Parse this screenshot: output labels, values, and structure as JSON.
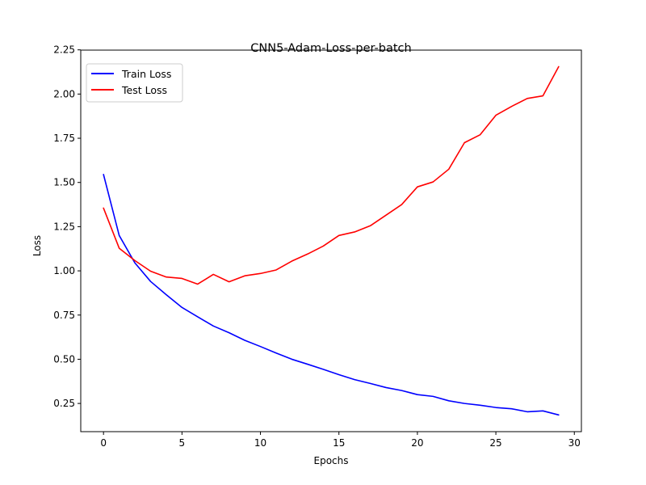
{
  "chart_data": {
    "type": "line",
    "title": "CNN5-Adam-Loss-per-batch",
    "xlabel": "Epochs",
    "ylabel": "Loss",
    "xlim": [
      -1.45,
      30.45
    ],
    "ylim": [
      0.0905,
      2.2485
    ],
    "xticks": [
      0,
      5,
      10,
      15,
      20,
      25,
      30
    ],
    "xtick_labels": [
      "0",
      "5",
      "10",
      "15",
      "20",
      "25",
      "30"
    ],
    "yticks": [
      0.25,
      0.5,
      0.75,
      1.0,
      1.25,
      1.5,
      1.75,
      2.0,
      2.25
    ],
    "ytick_labels": [
      "0.25",
      "0.50",
      "0.75",
      "1.00",
      "1.25",
      "1.50",
      "1.75",
      "2.00",
      "2.25"
    ],
    "grid": false,
    "legend_position": "top-left",
    "x": [
      0,
      1,
      2,
      3,
      4,
      5,
      6,
      7,
      8,
      9,
      10,
      11,
      12,
      13,
      14,
      15,
      16,
      17,
      18,
      19,
      20,
      21,
      22,
      23,
      24,
      25,
      26,
      27,
      28,
      29
    ],
    "series": [
      {
        "name": "Train Loss",
        "color": "#0000ff",
        "values": [
          1.545,
          1.2,
          1.045,
          0.94,
          0.865,
          0.793,
          0.74,
          0.688,
          0.65,
          0.607,
          0.572,
          0.535,
          0.5,
          0.472,
          0.443,
          0.413,
          0.385,
          0.363,
          0.34,
          0.323,
          0.3,
          0.29,
          0.265,
          0.25,
          0.24,
          0.227,
          0.22,
          0.203,
          0.208,
          0.185
        ]
      },
      {
        "name": "Test Loss",
        "color": "#ff0000",
        "values": [
          1.355,
          1.128,
          1.058,
          0.998,
          0.965,
          0.957,
          0.925,
          0.98,
          0.938,
          0.972,
          0.985,
          1.005,
          1.055,
          1.095,
          1.14,
          1.2,
          1.22,
          1.255,
          1.315,
          1.375,
          1.475,
          1.503,
          1.575,
          1.725,
          1.77,
          1.88,
          1.93,
          1.975,
          1.99,
          2.155
        ]
      }
    ]
  }
}
